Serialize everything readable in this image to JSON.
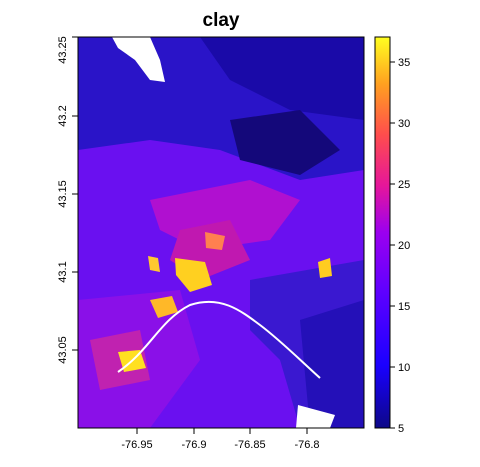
{
  "title": "clay",
  "x_axis": {
    "ticks": [
      "-76.95",
      "-76.9",
      "-76.85",
      "-76.8"
    ]
  },
  "y_axis": {
    "ticks": [
      "43.05",
      "43.1",
      "43.15",
      "43.2",
      "43.25"
    ]
  },
  "legend": {
    "ticks": [
      "5",
      "10",
      "15",
      "20",
      "25",
      "30",
      "35"
    ],
    "range": [
      5,
      37
    ]
  },
  "chart_data": {
    "type": "heatmap",
    "title": "clay",
    "xlabel": "",
    "ylabel": "",
    "xlim": [
      -76.995,
      -76.755
    ],
    "ylim": [
      43.0,
      43.25
    ],
    "color_scale": {
      "name": "plasma",
      "min": 5,
      "max": 37,
      "stops": [
        "#0d0887",
        "#2a00ff",
        "#7a00ff",
        "#b000e0",
        "#e6169a",
        "#ff4d4d",
        "#ffa020",
        "#ffff20"
      ]
    },
    "legend_placement": "right",
    "grid": false
  }
}
